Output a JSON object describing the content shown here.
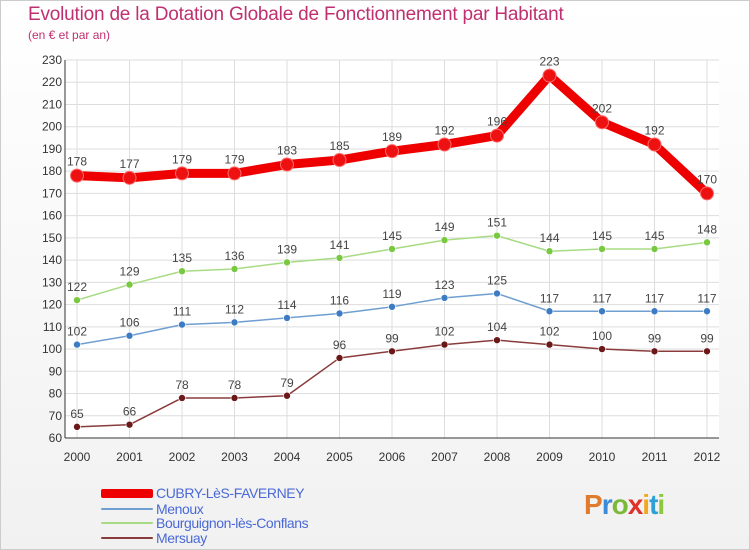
{
  "chart_data": {
    "type": "line",
    "title": "Evolution de la Dotation Globale de Fonctionnement par Habitant",
    "subtitle": "(en € et par an)",
    "xlabel": "",
    "ylabel": "",
    "ylim": [
      60,
      230
    ],
    "yticks": [
      60,
      70,
      80,
      90,
      100,
      110,
      120,
      130,
      140,
      150,
      160,
      170,
      180,
      190,
      200,
      210,
      220,
      230
    ],
    "categories": [
      "2000",
      "2001",
      "2002",
      "2003",
      "2004",
      "2005",
      "2006",
      "2007",
      "2008",
      "2009",
      "2010",
      "2011",
      "2012"
    ],
    "grid": true,
    "legend_position": "bottom-left",
    "series": [
      {
        "name": "CUBRY-LèS-FAVERNEY",
        "color": "#ee0000",
        "point_color": "#ee1111",
        "values": [
          178,
          177,
          179,
          179,
          183,
          185,
          189,
          192,
          196,
          223,
          202,
          192,
          170
        ]
      },
      {
        "name": "Menoux",
        "color": "#6f9fd0",
        "point_color": "#3d7cc4",
        "values": [
          102,
          106,
          111,
          112,
          114,
          116,
          119,
          123,
          125,
          117,
          117,
          117,
          117
        ]
      },
      {
        "name": "Bourguignon-lès-Conflans",
        "color": "#a8db84",
        "point_color": "#78c840",
        "values": [
          122,
          129,
          135,
          136,
          139,
          141,
          145,
          149,
          151,
          144,
          145,
          145,
          148
        ]
      },
      {
        "name": "Mersuay",
        "color": "#8a3b3b",
        "point_color": "#6a1818",
        "values": [
          65,
          66,
          78,
          78,
          79,
          96,
          99,
          102,
          104,
          102,
          100,
          99,
          99
        ]
      }
    ]
  },
  "branding": {
    "logo_letters": [
      "P",
      "r",
      "o",
      "x",
      "i",
      "t",
      "i"
    ]
  }
}
